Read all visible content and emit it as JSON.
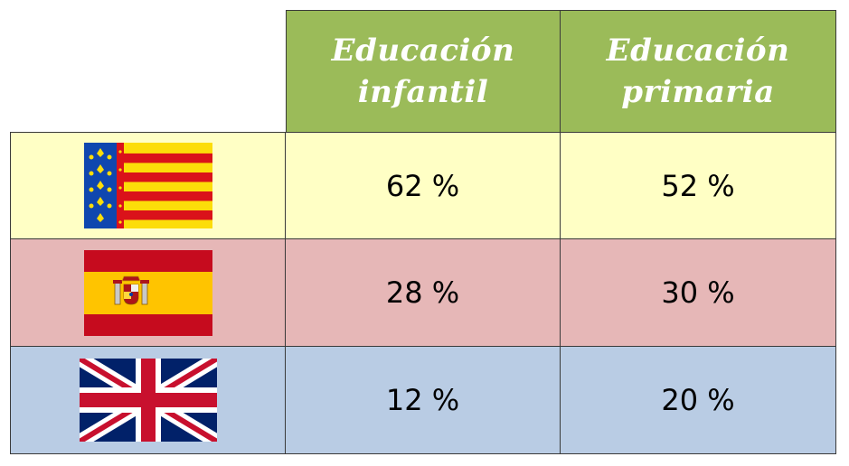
{
  "table": {
    "headers": [
      "",
      "Educación\ninfantil",
      "Educación\nprimaria"
    ],
    "rows": [
      {
        "flag": "valencian-flag",
        "infantil": "62 %",
        "primaria": "52 %",
        "color": "#ffffc5"
      },
      {
        "flag": "spanish-flag",
        "infantil": "28 %",
        "primaria": "30 %",
        "color": "#e6b7b7"
      },
      {
        "flag": "british-flag",
        "infantil": "12 %",
        "primaria": "20 %",
        "color": "#b9cce4"
      }
    ]
  },
  "colors": {
    "header": "#9bbb59",
    "header_text": "#ffffff"
  }
}
